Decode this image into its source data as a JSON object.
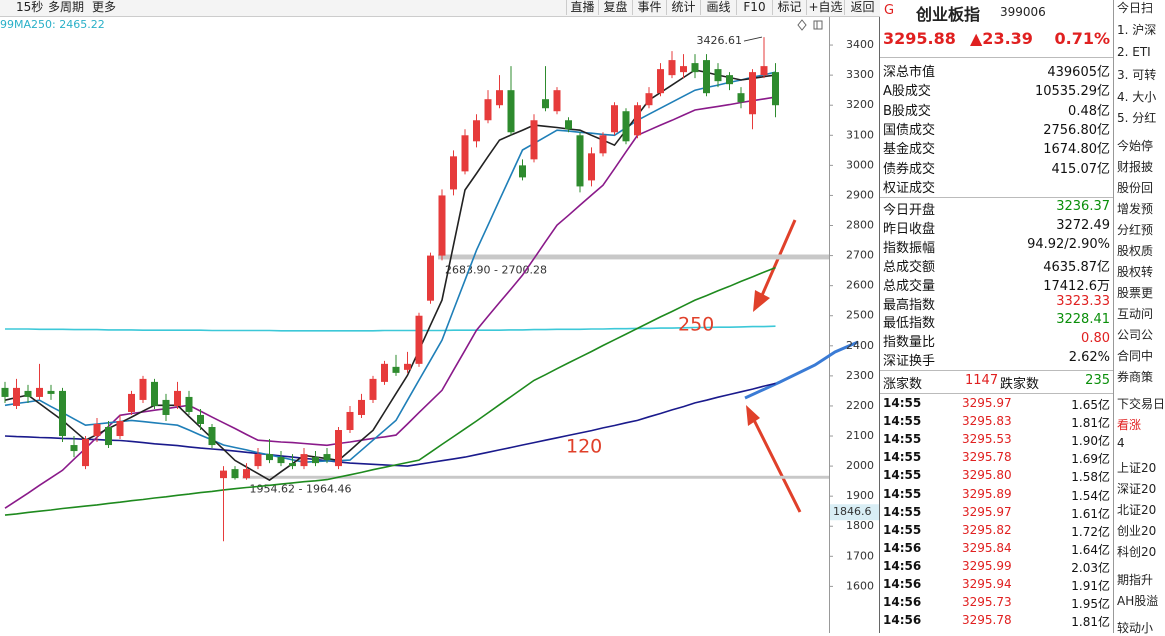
{
  "toolbar": {
    "left": [
      "15秒",
      "多周期",
      "更多"
    ],
    "right": [
      "直播",
      "复盘",
      "事件",
      "统计",
      "画线",
      "F10",
      "标记",
      "+自选",
      "返回"
    ]
  },
  "chart_data": {
    "type": "candlestick",
    "legend_texts": [
      "99",
      "MA250: 2465.22"
    ],
    "up_color": "#e63b3b",
    "down_color": "#2e8b2e",
    "open": [
      2260,
      2200,
      2250,
      2230,
      2250,
      2250,
      2070,
      2000,
      2100,
      2130,
      2100,
      2180,
      2220,
      2280,
      2220,
      2200,
      2230,
      2170,
      2130,
      1960,
      1990,
      1960,
      2000,
      2040,
      2030,
      2010,
      2000,
      2030,
      2040,
      2000,
      2120,
      2170,
      2220,
      2280,
      2330,
      2320,
      2340,
      2550,
      2700,
      2920,
      2980,
      3080,
      3150,
      3200,
      3250,
      3000,
      3020,
      3220,
      3180,
      3150,
      3100,
      2950,
      3040,
      3110,
      3180,
      3100,
      3200,
      3240,
      3300,
      3310,
      3340,
      3350,
      3320,
      3300,
      3240,
      3170,
      3300,
      3310
    ],
    "high": [
      2280,
      2290,
      2270,
      2340,
      2270,
      2260,
      2100,
      2100,
      2160,
      2150,
      2170,
      2250,
      2300,
      2290,
      2240,
      2280,
      2250,
      2190,
      2140,
      2000,
      2000,
      2010,
      2060,
      2090,
      2050,
      2040,
      2060,
      2050,
      2060,
      2130,
      2200,
      2240,
      2300,
      2350,
      2370,
      2380,
      2510,
      2710,
      2920,
      3050,
      3120,
      3170,
      3250,
      3300,
      3330,
      3020,
      3170,
      3330,
      3260,
      3160,
      3110,
      3060,
      3110,
      3210,
      3190,
      3210,
      3260,
      3340,
      3380,
      3370,
      3370,
      3370,
      3340,
      3310,
      3260,
      3320,
      3426.61,
      3340
    ],
    "low": [
      2210,
      2190,
      2210,
      2220,
      2220,
      2080,
      2030,
      1990,
      2080,
      2060,
      2090,
      2170,
      2210,
      2190,
      2150,
      2190,
      2170,
      2120,
      2060,
      1750,
      1955,
      1954.62,
      1990,
      2010,
      2000,
      1990,
      1990,
      2000,
      2010,
      1990,
      2110,
      2160,
      2210,
      2270,
      2300,
      2310,
      2330,
      2540,
      2683.9,
      2900,
      2970,
      3060,
      3140,
      3190,
      3100,
      2950,
      3010,
      3180,
      3170,
      3110,
      2910,
      2930,
      3030,
      3100,
      3070,
      3090,
      3190,
      3230,
      3290,
      3290,
      3290,
      3230,
      3260,
      3250,
      3190,
      3120,
      3290,
      3160
    ],
    "close": [
      2230,
      2260,
      2230,
      2260,
      2240,
      2100,
      2050,
      2090,
      2140,
      2070,
      2150,
      2240,
      2290,
      2200,
      2170,
      2250,
      2180,
      2140,
      2070,
      1985,
      1960,
      1990,
      2040,
      2020,
      2010,
      2000,
      2040,
      2010,
      2020,
      2120,
      2180,
      2220,
      2290,
      2340,
      2310,
      2340,
      2500,
      2700,
      2900,
      3030,
      3100,
      3150,
      3220,
      3250,
      3110,
      2960,
      3150,
      3190,
      3250,
      3120,
      2930,
      3040,
      3100,
      3200,
      3080,
      3200,
      3240,
      3320,
      3350,
      3330,
      3310,
      3240,
      3280,
      3270,
      3210,
      3310,
      3330,
      3200
    ],
    "lines": [
      {
        "color": "#3cc8d8",
        "label": "250",
        "values": [
          2456,
          2456,
          2456,
          2455,
          2455,
          2455,
          2454,
          2454,
          2454,
          2453,
          2453,
          2453,
          2452,
          2452,
          2452,
          2452,
          2452,
          2452,
          2451,
          2451,
          2451,
          2451,
          2451,
          2451,
          2450,
          2450,
          2450,
          2450,
          2450,
          2450,
          2450,
          2450,
          2450,
          2451,
          2451,
          2451,
          2451,
          2451,
          2451,
          2452,
          2452,
          2452,
          2452,
          2452,
          2453,
          2453,
          2454,
          2454,
          2455,
          2455,
          2455,
          2456,
          2456,
          2457,
          2457,
          2458,
          2458,
          2459,
          2459,
          2460,
          2461,
          2461,
          2462,
          2462,
          2463,
          2464,
          2464,
          2465.22
        ]
      },
      {
        "color": "#1a1a8c",
        "label": "120",
        "values": [
          2100,
          2098,
          2097,
          2095,
          2094,
          2092,
          2091,
          2089,
          2088,
          2086,
          2085,
          2082,
          2078,
          2074,
          2071,
          2068,
          2064,
          2060,
          2057,
          2054,
          2050,
          2046,
          2042,
          2038,
          2034,
          2030,
          2026,
          2022,
          2018,
          2014,
          2010,
          2008,
          2006,
          2004,
          2002,
          2000,
          2006,
          2012,
          2018,
          2024,
          2030,
          2038,
          2046,
          2054,
          2062,
          2070,
          2078,
          2086,
          2094,
          2102,
          2110,
          2118,
          2127,
          2135,
          2144,
          2152,
          2164,
          2175,
          2187,
          2198,
          2210,
          2219,
          2229,
          2238,
          2247,
          2256,
          2266,
          2275
        ]
      },
      {
        "color": "#1e8a1e",
        "values": [
          1837,
          1841,
          1846,
          1850,
          1854,
          1859,
          1863,
          1867,
          1871,
          1876,
          1880,
          1885,
          1889,
          1894,
          1898,
          1903,
          1907,
          1912,
          1916,
          1921,
          1925,
          1929,
          1932,
          1936,
          1940,
          1944,
          1948,
          1951,
          1955,
          1963,
          1971,
          1979,
          1988,
          1996,
          2004,
          2012,
          2020,
          2046,
          2072,
          2098,
          2124,
          2150,
          2177,
          2204,
          2231,
          2258,
          2285,
          2304,
          2324,
          2343,
          2362,
          2381,
          2401,
          2420,
          2439,
          2458,
          2477,
          2496,
          2514,
          2533,
          2552,
          2567,
          2583,
          2598,
          2614,
          2629,
          2645,
          2660
        ]
      },
      {
        "color": "#8a1a8a",
        "values": [
          1860,
          1885,
          1910,
          1936,
          1961,
          1986,
          2023,
          2059,
          2096,
          2132,
          2169,
          2175,
          2180,
          2186,
          2191,
          2197,
          2202,
          2183,
          2163,
          2144,
          2125,
          2105,
          2086,
          2083,
          2080,
          2078,
          2075,
          2072,
          2069,
          2075,
          2080,
          2086,
          2092,
          2097,
          2103,
          2140,
          2178,
          2215,
          2252,
          2319,
          2385,
          2452,
          2498,
          2544,
          2589,
          2635,
          2690,
          2746,
          2801,
          2834,
          2868,
          2901,
          2934,
          2989,
          3045,
          3100,
          3117,
          3134,
          3150,
          3167,
          3184,
          3190,
          3196,
          3202,
          3209,
          3215,
          3221,
          3227
        ]
      },
      {
        "color": "#1f7fb8",
        "values": [
          2202,
          2208,
          2213,
          2219,
          2198,
          2178,
          2157,
          2136,
          2140,
          2144,
          2148,
          2152,
          2148,
          2144,
          2140,
          2136,
          2120,
          2103,
          2087,
          2070,
          2062,
          2054,
          2045,
          2037,
          2029,
          2021,
          2013,
          2015,
          2017,
          2018,
          2020,
          2053,
          2086,
          2119,
          2152,
          2219,
          2286,
          2352,
          2419,
          2519,
          2618,
          2718,
          2801,
          2885,
          2968,
          3051,
          3073,
          3095,
          3117,
          3114,
          3110,
          3107,
          3103,
          3100,
          3125,
          3150,
          3170,
          3190,
          3210,
          3230,
          3250,
          3259,
          3267,
          3276,
          3284,
          3293,
          3301,
          3310
        ]
      },
      {
        "color": "#222222",
        "values": [
          2219,
          2228,
          2236,
          2208,
          2180,
          2152,
          2119,
          2086,
          2105,
          2125,
          2144,
          2163,
          2183,
          2202,
          2202,
          2202,
          2165,
          2129,
          2092,
          2056,
          2019,
          1997,
          1975,
          1953,
          1981,
          2008,
          2036,
          2030,
          2025,
          2019,
          2052,
          2086,
          2119,
          2180,
          2241,
          2302,
          2385,
          2469,
          2552,
          2735,
          2918,
          2973,
          3029,
          3084,
          3101,
          3117,
          3134,
          3130,
          3126,
          3121,
          3117,
          3100,
          3084,
          3067,
          3117,
          3167,
          3217,
          3242,
          3267,
          3292,
          3317,
          3309,
          3300,
          3292,
          3284,
          3289,
          3295,
          3300
        ]
      }
    ],
    "max_label": "3426.61",
    "levels": [
      {
        "label": "2683.90 - 2700.28",
        "low": 2683.9,
        "high": 2700.28
      },
      {
        "label": "1954.62 - 1964.46",
        "low": 1954.62,
        "high": 1964.46
      }
    ],
    "cursor": 1846.6,
    "ylim": [
      1455,
      3490
    ],
    "yticks": [
      1600,
      1700,
      1800,
      1900,
      2000,
      2100,
      2200,
      2300,
      2400,
      2500,
      2600,
      2700,
      2800,
      2900,
      3000,
      3100,
      3200,
      3300,
      3400
    ],
    "grid": false
  },
  "quote": {
    "badge": "G",
    "name": "创业板指",
    "code": "399006",
    "price": "3295.88",
    "change": "▲23.39",
    "pct": "0.71%"
  },
  "stats": [
    [
      "深总市值",
      "439605亿"
    ],
    [
      "A股成交",
      "10535.29亿"
    ],
    [
      "B股成交",
      "0.48亿"
    ],
    [
      "国债成交",
      "2756.80亿"
    ],
    [
      "基金成交",
      "1674.80亿"
    ],
    [
      "债券成交",
      "415.07亿"
    ],
    [
      "权证成交"
    ]
  ],
  "stats2": [
    {
      "label": "今日开盘",
      "value": "3236.37",
      "color": "#0a8f0a"
    },
    {
      "label": "昨日收盘",
      "value": "3272.49",
      "color": "#111111"
    },
    {
      "label": "指数振幅",
      "value": "94.92/2.90%",
      "color": "#111111"
    },
    {
      "label": "总成交额",
      "value": "4635.87亿",
      "color": "#111111"
    },
    {
      "label": "总成交量",
      "value": "17412.6万",
      "color": "#111111"
    },
    {
      "label": "最高指数",
      "value": "3323.33",
      "color": "#e02020"
    },
    {
      "label": "最低指数",
      "value": "3228.41",
      "color": "#0a8f0a"
    },
    {
      "label": "指数量比",
      "value": "0.80",
      "color": "#e02020"
    },
    {
      "label": "深证换手",
      "value": "2.62%",
      "color": "#111111"
    }
  ],
  "breadth": [
    "涨家数",
    "1147",
    "跌家数",
    "235"
  ],
  "ticks": [
    [
      "14:55",
      "3295.97",
      "1.65亿"
    ],
    [
      "14:55",
      "3295.83",
      "1.81亿"
    ],
    [
      "14:55",
      "3295.53",
      "1.90亿"
    ],
    [
      "14:55",
      "3295.78",
      "1.69亿"
    ],
    [
      "14:55",
      "3295.80",
      "1.58亿"
    ],
    [
      "14:55",
      "3295.89",
      "1.54亿"
    ],
    [
      "14:55",
      "3295.97",
      "1.61亿"
    ],
    [
      "14:55",
      "3295.82",
      "1.72亿"
    ],
    [
      "14:56",
      "3295.84",
      "1.64亿"
    ],
    [
      "14:56",
      "3295.99",
      "2.03亿"
    ],
    [
      "14:56",
      "3295.94",
      "1.91亿"
    ],
    [
      "14:56",
      "3295.73",
      "1.95亿"
    ],
    [
      "14:56",
      "3295.78",
      "1.81亿"
    ]
  ],
  "side_list": [
    "今日扫",
    "1. 沪深",
    "2. ETI",
    "3. 可转",
    "4. 大小",
    "5. 分红",
    "今始停",
    "财报披",
    "股份回",
    "增发预",
    "分红预",
    "股权质",
    "股权转",
    "股票更",
    "互动问",
    "公司公",
    "合同中",
    "券商策",
    "下交易日",
    "看涨",
    "4",
    "上证20",
    "深证20",
    "北证20",
    "创业20",
    "科创20",
    "期指升",
    "AH股溢",
    "较动小"
  ]
}
